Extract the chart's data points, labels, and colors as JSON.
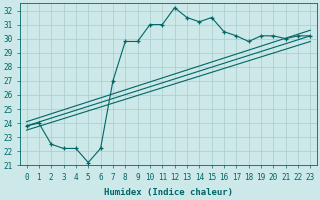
{
  "xlabel": "Humidex (Indice chaleur)",
  "background_color": "#cce8e8",
  "grid_color": "#aacccc",
  "line_color": "#006666",
  "xlim": [
    -0.5,
    23.5
  ],
  "ylim": [
    21,
    32.5
  ],
  "xticks": [
    0,
    1,
    2,
    3,
    4,
    5,
    6,
    7,
    8,
    9,
    10,
    11,
    12,
    13,
    14,
    15,
    16,
    17,
    18,
    19,
    20,
    21,
    22,
    23
  ],
  "yticks": [
    21,
    22,
    23,
    24,
    25,
    26,
    27,
    28,
    29,
    30,
    31,
    32
  ],
  "curve1_x": [
    0,
    1,
    2,
    3,
    4,
    5,
    6,
    7,
    8,
    9,
    10,
    11,
    12,
    13,
    14,
    15,
    16,
    17,
    18,
    19,
    20,
    21,
    22,
    23
  ],
  "curve1_y": [
    23.8,
    24.0,
    22.5,
    22.2,
    22.2,
    21.2,
    22.2,
    27.0,
    29.8,
    29.8,
    31.0,
    31.0,
    32.2,
    31.5,
    31.2,
    31.5,
    30.5,
    30.2,
    29.8,
    30.2,
    30.2,
    30.0,
    30.2,
    30.2
  ],
  "line1_x": [
    0,
    23
  ],
  "line1_y": [
    23.8,
    30.2
  ],
  "line2_x": [
    0,
    23
  ],
  "line2_y": [
    23.5,
    29.8
  ],
  "line3_x": [
    0,
    23
  ],
  "line3_y": [
    24.1,
    30.6
  ]
}
